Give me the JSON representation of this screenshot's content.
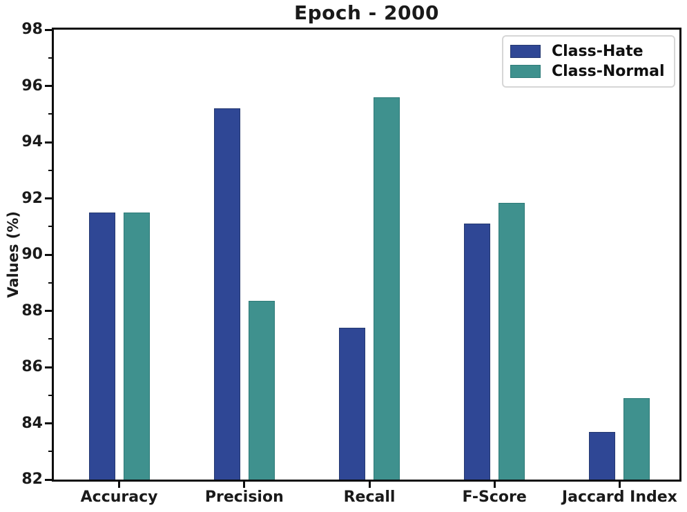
{
  "figure": {
    "background": "#ffffff",
    "spine_color": "#0d0d0d",
    "legend_border_color": "#d6d6d6"
  },
  "chart_data": {
    "type": "bar",
    "title": "Epoch - 2000",
    "xlabel": "",
    "ylabel": "Values (%)",
    "categories": [
      "Accuracy",
      "Precision",
      "Recall",
      "F-Score",
      "Jaccard Index"
    ],
    "series": [
      {
        "name": "Class-Hate",
        "color": "#2f4795",
        "edge_color": "#24386f",
        "values": [
          91.5,
          95.2,
          87.4,
          91.1,
          83.7
        ]
      },
      {
        "name": "Class-Normal",
        "color": "#3f918e",
        "edge_color": "#2d7a77",
        "values": [
          91.5,
          88.35,
          95.6,
          91.85,
          84.9
        ]
      }
    ],
    "ylim": [
      82,
      98
    ],
    "yticks": [
      82,
      84,
      86,
      88,
      90,
      92,
      94,
      96,
      98
    ],
    "yticks_minor": [
      83,
      85,
      87,
      89,
      91,
      93,
      95,
      97
    ],
    "grid": false,
    "legend_position": "upper right"
  }
}
